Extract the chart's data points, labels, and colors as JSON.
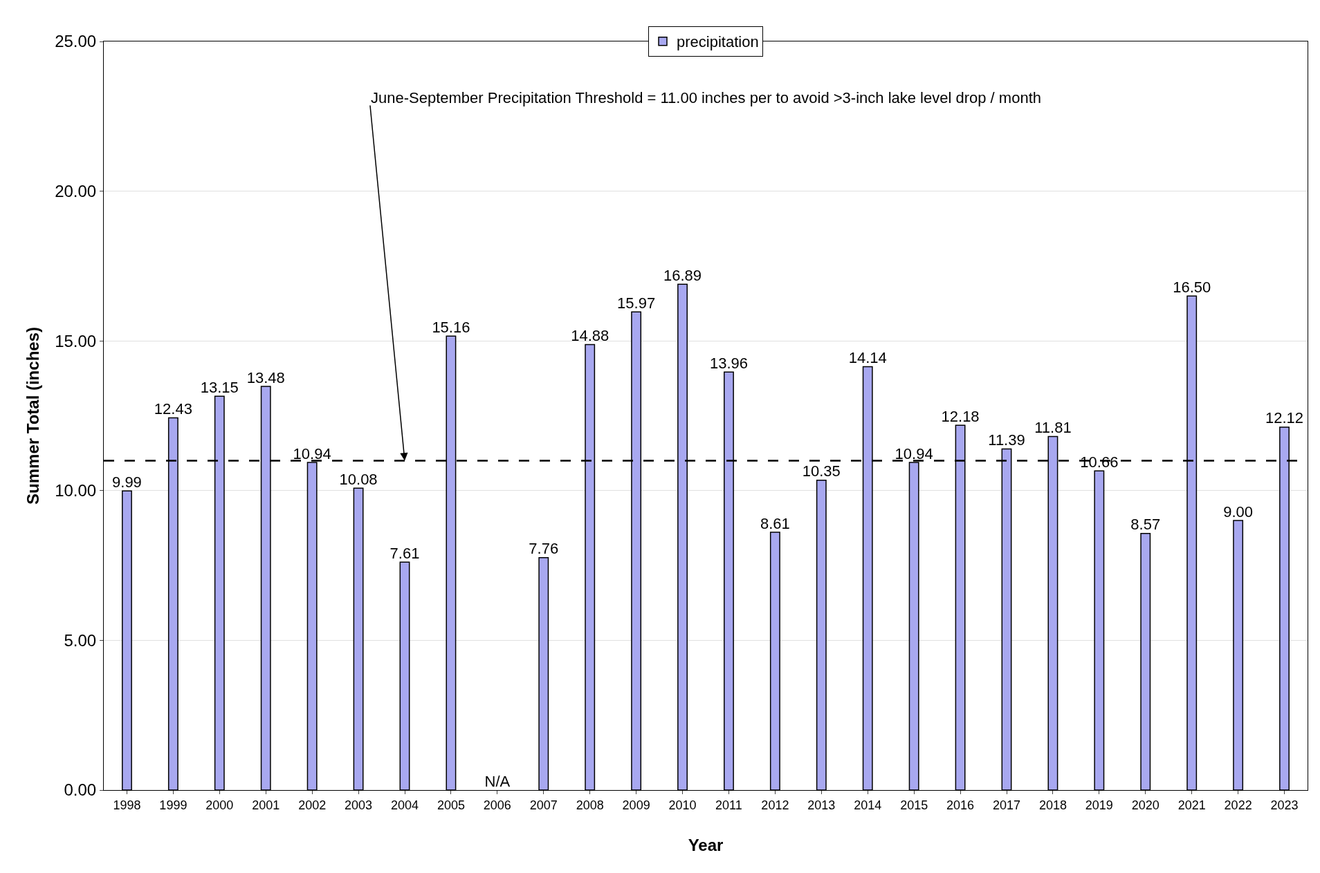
{
  "chart_data": {
    "type": "bar",
    "xlabel": "Year",
    "ylabel": "Summer Total (inches)",
    "categories": [
      "1998",
      "1999",
      "2000",
      "2001",
      "2002",
      "2003",
      "2004",
      "2005",
      "2006",
      "2007",
      "2008",
      "2009",
      "2010",
      "2011",
      "2012",
      "2013",
      "2014",
      "2015",
      "2016",
      "2017",
      "2018",
      "2019",
      "2020",
      "2021",
      "2022",
      "2023"
    ],
    "series": [
      {
        "name": "precipitation",
        "color": "#a8a8f0",
        "values": [
          9.99,
          12.43,
          13.15,
          13.48,
          10.94,
          10.08,
          7.61,
          15.16,
          null,
          7.76,
          14.88,
          15.97,
          16.89,
          13.96,
          8.61,
          10.35,
          14.14,
          10.94,
          12.18,
          11.39,
          11.81,
          10.66,
          8.57,
          16.5,
          9.0,
          12.12
        ],
        "value_labels": [
          "9.99",
          "12.43",
          "13.15",
          "13.48",
          "10.94",
          "10.08",
          "7.61",
          "15.16",
          "N/A",
          "7.76",
          "14.88",
          "15.97",
          "16.89",
          "13.96",
          "8.61",
          "10.35",
          "14.14",
          "10.94",
          "12.18",
          "11.39",
          "11.81",
          "10.66",
          "8.57",
          "16.50",
          "9.00",
          "12.12"
        ]
      }
    ],
    "ylim": [
      0,
      25
    ],
    "yticks": [
      {
        "value": 0,
        "label": "0.00"
      },
      {
        "value": 5,
        "label": "5.00"
      },
      {
        "value": 10,
        "label": "10.00"
      },
      {
        "value": 15,
        "label": "15.00"
      },
      {
        "value": 20,
        "label": "20.00"
      },
      {
        "value": 25,
        "label": "25.00"
      }
    ],
    "grid": "y",
    "legend": "top",
    "ref_lines": [
      {
        "axis": "y",
        "value": 11.0,
        "label": null,
        "color": "#000000",
        "line_style": "dashed"
      }
    ],
    "annotations": [
      {
        "text": "June-September Precipitation Threshold = 11.00 inches per to avoid >3-inch lake level drop / month",
        "x": "2004",
        "y": 11.0
      }
    ]
  }
}
